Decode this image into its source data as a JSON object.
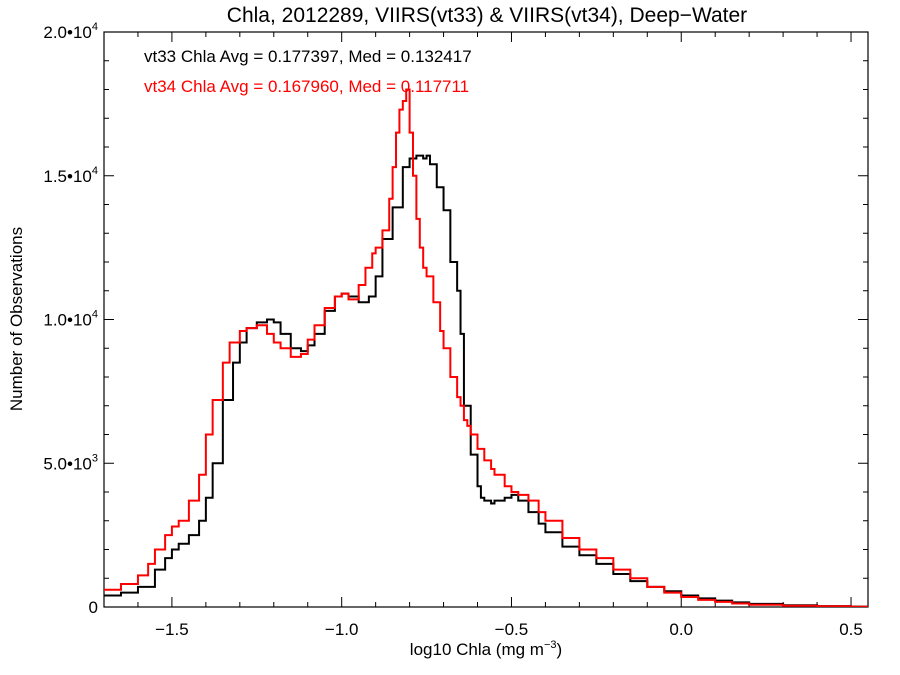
{
  "chart_data": {
    "type": "line",
    "step": true,
    "title": "Chla, 2012289, VIIRS(vt33) & VIIRS(vt34), Deep−Water",
    "xlabel": "log10 Chla (mg m",
    "xlabel_sup": "−3",
    "xlabel_suffix": ")",
    "ylabel": "Number of Observations",
    "xlim": [
      -1.7,
      0.55
    ],
    "ylim": [
      0,
      20000
    ],
    "x_ticks": [
      {
        "value": -1.5,
        "label": "−1.5"
      },
      {
        "value": -1.0,
        "label": "−1.0"
      },
      {
        "value": -0.5,
        "label": "−0.5"
      },
      {
        "value": 0.0,
        "label": "0.0"
      },
      {
        "value": 0.5,
        "label": "0.5"
      }
    ],
    "y_ticks": [
      {
        "value": 0,
        "label": "0",
        "sup": ""
      },
      {
        "value": 5000,
        "label": "5.0•10",
        "sup": "3"
      },
      {
        "value": 10000,
        "label": "1.0•10",
        "sup": "4"
      },
      {
        "value": 15000,
        "label": "1.5•10",
        "sup": "4"
      },
      {
        "value": 20000,
        "label": "2.0•10",
        "sup": "4"
      }
    ],
    "annotations": [
      {
        "text": "vt33 Chla Avg = 0.177397, Med = 0.132417",
        "color": "#000000"
      },
      {
        "text": "vt34 Chla Avg = 0.167960, Med = 0.117711",
        "color": "#ff0000"
      }
    ],
    "series": [
      {
        "color": "#000000",
        "x": [
          -1.7,
          -1.65,
          -1.6,
          -1.55,
          -1.52,
          -1.5,
          -1.48,
          -1.45,
          -1.42,
          -1.4,
          -1.38,
          -1.35,
          -1.32,
          -1.3,
          -1.28,
          -1.25,
          -1.22,
          -1.2,
          -1.18,
          -1.15,
          -1.12,
          -1.1,
          -1.08,
          -1.05,
          -1.02,
          -1.0,
          -0.98,
          -0.95,
          -0.92,
          -0.9,
          -0.88,
          -0.85,
          -0.82,
          -0.8,
          -0.78,
          -0.76,
          -0.75,
          -0.74,
          -0.72,
          -0.7,
          -0.68,
          -0.66,
          -0.65,
          -0.64,
          -0.62,
          -0.6,
          -0.59,
          -0.58,
          -0.56,
          -0.55,
          -0.52,
          -0.5,
          -0.48,
          -0.45,
          -0.42,
          -0.4,
          -0.35,
          -0.3,
          -0.25,
          -0.2,
          -0.15,
          -0.1,
          -0.05,
          0.0,
          0.05,
          0.1,
          0.15,
          0.2,
          0.3,
          0.4,
          0.5,
          0.55
        ],
        "values": [
          400,
          500,
          700,
          1300,
          1700,
          2000,
          2200,
          2500,
          3000,
          3800,
          5000,
          7200,
          8500,
          9200,
          9700,
          9900,
          10000,
          9900,
          9500,
          9000,
          8900,
          9100,
          9500,
          10300,
          10800,
          10900,
          10800,
          10600,
          10800,
          11500,
          12800,
          13900,
          15300,
          15600,
          15700,
          15600,
          15700,
          15400,
          14600,
          13800,
          12000,
          11000,
          9500,
          7000,
          5300,
          4200,
          3800,
          3700,
          3600,
          3700,
          3800,
          3900,
          3700,
          3300,
          2900,
          2600,
          2100,
          1800,
          1500,
          1150,
          900,
          700,
          550,
          400,
          300,
          220,
          160,
          110,
          60,
          30,
          15,
          10
        ]
      },
      {
        "color": "#ff0000",
        "x": [
          -1.7,
          -1.65,
          -1.6,
          -1.57,
          -1.55,
          -1.52,
          -1.5,
          -1.48,
          -1.45,
          -1.42,
          -1.4,
          -1.38,
          -1.35,
          -1.33,
          -1.3,
          -1.28,
          -1.25,
          -1.22,
          -1.2,
          -1.18,
          -1.15,
          -1.12,
          -1.1,
          -1.08,
          -1.05,
          -1.02,
          -1.0,
          -0.98,
          -0.95,
          -0.93,
          -0.91,
          -0.9,
          -0.88,
          -0.86,
          -0.85,
          -0.84,
          -0.83,
          -0.82,
          -0.81,
          -0.8,
          -0.79,
          -0.78,
          -0.77,
          -0.76,
          -0.75,
          -0.73,
          -0.71,
          -0.7,
          -0.68,
          -0.66,
          -0.65,
          -0.64,
          -0.63,
          -0.62,
          -0.6,
          -0.58,
          -0.56,
          -0.55,
          -0.52,
          -0.5,
          -0.48,
          -0.45,
          -0.42,
          -0.4,
          -0.35,
          -0.3,
          -0.25,
          -0.2,
          -0.15,
          -0.1,
          -0.05,
          0.0,
          0.05,
          0.1,
          0.15,
          0.2,
          0.3,
          0.4,
          0.5,
          0.55
        ],
        "values": [
          600,
          800,
          1100,
          1500,
          2000,
          2500,
          2800,
          3000,
          3700,
          4600,
          6000,
          7200,
          8500,
          9200,
          9600,
          9700,
          9800,
          9500,
          9200,
          9000,
          8700,
          8800,
          9300,
          9800,
          10400,
          10800,
          10900,
          10700,
          11200,
          11800,
          12300,
          12500,
          13100,
          14200,
          15300,
          16500,
          17300,
          17600,
          18000,
          16500,
          15000,
          13500,
          12500,
          11800,
          11500,
          10600,
          9600,
          9000,
          8000,
          7300,
          7000,
          6500,
          6300,
          6000,
          5500,
          5100,
          4800,
          4600,
          4200,
          4000,
          3900,
          3700,
          3300,
          3000,
          2400,
          2000,
          1700,
          1300,
          1000,
          700,
          500,
          350,
          250,
          180,
          120,
          80,
          45,
          25,
          10,
          5
        ]
      }
    ]
  }
}
